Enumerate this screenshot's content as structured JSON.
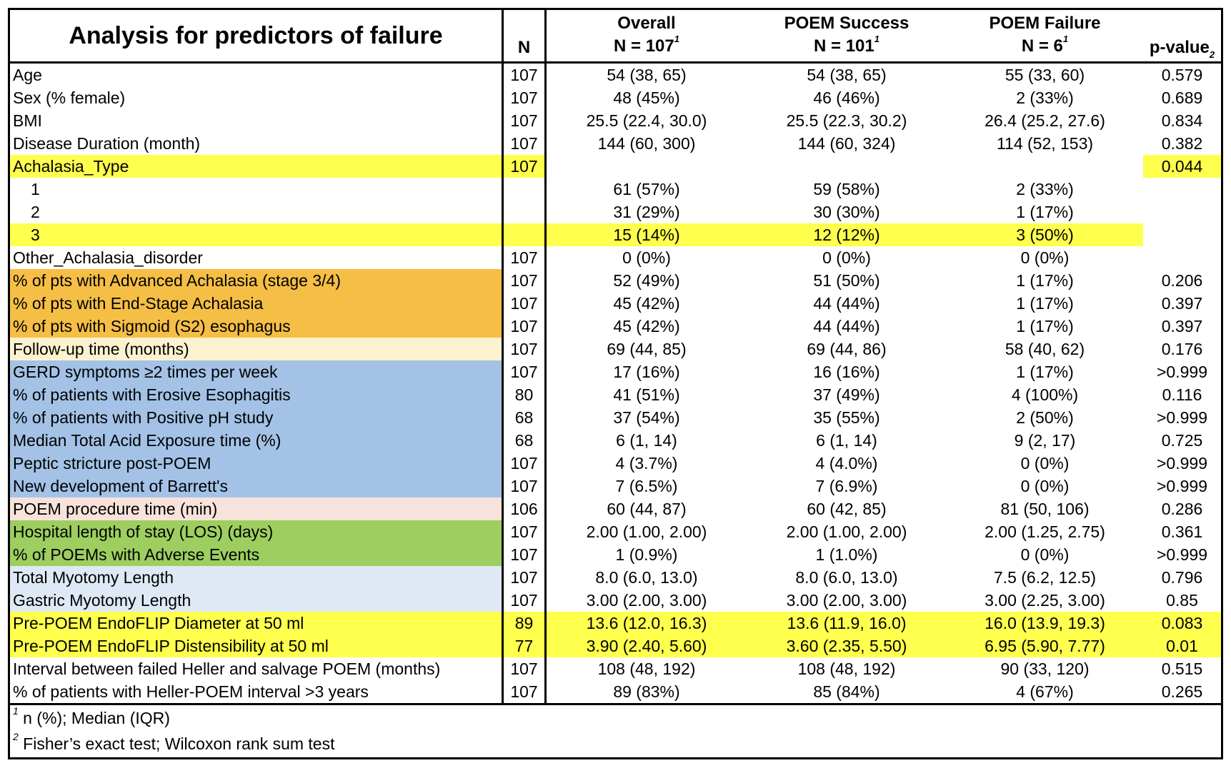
{
  "title": "Analysis for predictors of failure",
  "headers": {
    "n": "N",
    "overall": {
      "name": "Overall",
      "n": "N = 107",
      "sup": "1"
    },
    "success": {
      "name": "POEM Success",
      "n": "N = 101",
      "sup": "1"
    },
    "failure": {
      "name": "POEM Failure",
      "n": "N = 6",
      "sup": "1"
    },
    "pvalue": {
      "name": "p-value",
      "sup": "2"
    }
  },
  "colors": {
    "yellow": "#ffff4d",
    "orange": "#f5be45",
    "cream": "#fdf2d0",
    "blue": "#a3c2e6",
    "peach": "#f8e3dc",
    "green": "#9dce5f",
    "lightblue": "#dfe9f5"
  },
  "rows": [
    {
      "label": "Age",
      "n": "107",
      "overall": "54 (38, 65)",
      "success": "54 (38, 65)",
      "failure": "55 (33, 60)",
      "p": "0.579"
    },
    {
      "label": "Sex (% female)",
      "n": "107",
      "overall": "48 (45%)",
      "success": "46 (46%)",
      "failure": "2 (33%)",
      "p": "0.689"
    },
    {
      "label": "BMI",
      "n": "107",
      "overall": "25.5 (22.4, 30.0)",
      "success": "25.5 (22.3, 30.2)",
      "failure": "26.4 (25.2, 27.6)",
      "p": "0.834"
    },
    {
      "label": "Disease Duration (month)",
      "n": "107",
      "overall": "144 (60, 300)",
      "success": "144 (60, 324)",
      "failure": "114 (52, 153)",
      "p": "0.382"
    },
    {
      "label": "Achalasia_Type",
      "n": "107",
      "overall": "",
      "success": "",
      "failure": "",
      "p": "0.044",
      "hl": {
        "label": "yellow",
        "n": "yellow",
        "p": "yellow"
      }
    },
    {
      "label": "1",
      "sub": true,
      "n": "",
      "overall": "61 (57%)",
      "success": "59 (58%)",
      "failure": "2 (33%)",
      "p": ""
    },
    {
      "label": "2",
      "sub": true,
      "n": "",
      "overall": "31 (29%)",
      "success": "30 (30%)",
      "failure": "1 (17%)",
      "p": ""
    },
    {
      "label": "3",
      "sub": true,
      "n": "",
      "overall": "15 (14%)",
      "success": "12 (12%)",
      "failure": "3 (50%)",
      "p": "",
      "hl": {
        "label": "yellow",
        "n": "yellow",
        "overall": "yellow",
        "success": "yellow",
        "failure": "yellow"
      }
    },
    {
      "label": "Other_Achalasia_disorder",
      "n": "107",
      "overall": "0 (0%)",
      "success": "0 (0%)",
      "failure": "0 (0%)",
      "p": ""
    },
    {
      "label": "% of pts with Advanced Achalasia (stage 3/4)",
      "n": "107",
      "overall": "52 (49%)",
      "success": "51 (50%)",
      "failure": "1 (17%)",
      "p": "0.206",
      "hl": {
        "label": "orange"
      }
    },
    {
      "label": "% of pts with End-Stage Achalasia",
      "n": "107",
      "overall": "45 (42%)",
      "success": "44 (44%)",
      "failure": "1 (17%)",
      "p": "0.397",
      "hl": {
        "label": "orange"
      }
    },
    {
      "label": "% of pts with Sigmoid (S2) esophagus",
      "n": "107",
      "overall": "45 (42%)",
      "success": "44 (44%)",
      "failure": "1 (17%)",
      "p": "0.397",
      "hl": {
        "label": "orange"
      }
    },
    {
      "label": "Follow-up time (months)",
      "n": "107",
      "overall": "69 (44, 85)",
      "success": "69 (44, 86)",
      "failure": "58 (40, 62)",
      "p": "0.176",
      "hl": {
        "label": "cream"
      }
    },
    {
      "label": "GERD symptoms ≥2 times per week",
      "n": "107",
      "overall": "17 (16%)",
      "success": "16 (16%)",
      "failure": "1 (17%)",
      "p": ">0.999",
      "hl": {
        "label": "blue"
      }
    },
    {
      "label": "% of patients with Erosive Esophagitis",
      "n": "80",
      "overall": "41 (51%)",
      "success": "37 (49%)",
      "failure": "4 (100%)",
      "p": "0.116",
      "hl": {
        "label": "blue"
      }
    },
    {
      "label": "% of patients with Positive pH study",
      "n": "68",
      "overall": "37 (54%)",
      "success": "35 (55%)",
      "failure": "2 (50%)",
      "p": ">0.999",
      "hl": {
        "label": "blue"
      }
    },
    {
      "label": "Median Total Acid Exposure time (%)",
      "n": "68",
      "overall": "6 (1, 14)",
      "success": "6 (1, 14)",
      "failure": "9 (2, 17)",
      "p": "0.725",
      "hl": {
        "label": "blue"
      }
    },
    {
      "label": "Peptic stricture post-POEM",
      "n": "107",
      "overall": "4 (3.7%)",
      "success": "4 (4.0%)",
      "failure": "0 (0%)",
      "p": ">0.999",
      "hl": {
        "label": "blue"
      }
    },
    {
      "label": "New development of Barrett's",
      "n": "107",
      "overall": "7 (6.5%)",
      "success": "7 (6.9%)",
      "failure": "0 (0%)",
      "p": ">0.999",
      "hl": {
        "label": "blue"
      }
    },
    {
      "label": "POEM procedure time (min)",
      "n": "106",
      "overall": "60 (44, 87)",
      "success": "60 (42, 85)",
      "failure": "81 (50, 106)",
      "p": "0.286",
      "hl": {
        "label": "peach"
      }
    },
    {
      "label": "Hospital length of stay (LOS) (days)",
      "n": "107",
      "overall": "2.00 (1.00, 2.00)",
      "success": "2.00 (1.00, 2.00)",
      "failure": "2.00 (1.25, 2.75)",
      "p": "0.361",
      "hl": {
        "label": "green"
      }
    },
    {
      "label": "% of POEMs with Adverse Events",
      "n": "107",
      "overall": "1 (0.9%)",
      "success": "1 (1.0%)",
      "failure": "0 (0%)",
      "p": ">0.999",
      "hl": {
        "label": "green"
      }
    },
    {
      "label": "Total Myotomy Length",
      "n": "107",
      "overall": "8.0 (6.0, 13.0)",
      "success": "8.0 (6.0, 13.0)",
      "failure": "7.5 (6.2, 12.5)",
      "p": "0.796",
      "hl": {
        "label": "lightblue"
      }
    },
    {
      "label": "Gastric Myotomy Length",
      "n": "107",
      "overall": "3.00 (2.00, 3.00)",
      "success": "3.00 (2.00, 3.00)",
      "failure": "3.00 (2.25, 3.00)",
      "p": "0.85",
      "hl": {
        "label": "lightblue"
      }
    },
    {
      "label": "Pre-POEM EndoFLIP Diameter at 50 ml",
      "n": "89",
      "overall": "13.6 (12.0, 16.3)",
      "success": "13.6 (11.9, 16.0)",
      "failure": "16.0 (13.9, 19.3)",
      "p": "0.083",
      "hl": {
        "label": "yellow",
        "n": "yellow",
        "overall": "yellow",
        "success": "yellow",
        "failure": "yellow",
        "p": "yellow"
      }
    },
    {
      "label": "Pre-POEM EndoFLIP Distensibility at 50 ml",
      "n": "77",
      "overall": "3.90 (2.40, 5.60)",
      "success": "3.60 (2.35, 5.50)",
      "failure": "6.95 (5.90, 7.77)",
      "p": "0.01",
      "hl": {
        "label": "yellow",
        "n": "yellow",
        "overall": "yellow",
        "success": "yellow",
        "failure": "yellow",
        "p": "yellow"
      }
    },
    {
      "label": "Interval between failed Heller and salvage POEM (months)",
      "n": "107",
      "overall": "108 (48, 192)",
      "success": "108 (48, 192)",
      "failure": "90 (33, 120)",
      "p": "0.515"
    },
    {
      "label": "% of patients with Heller-POEM interval >3 years",
      "n": "107",
      "overall": "89 (83%)",
      "success": "85 (84%)",
      "failure": "4 (67%)",
      "p": "0.265"
    }
  ],
  "footnotes": [
    {
      "sup": "1",
      "text": " n (%); Median (IQR)"
    },
    {
      "sup": "2",
      "text": " Fisher’s exact test; Wilcoxon rank sum test"
    }
  ]
}
